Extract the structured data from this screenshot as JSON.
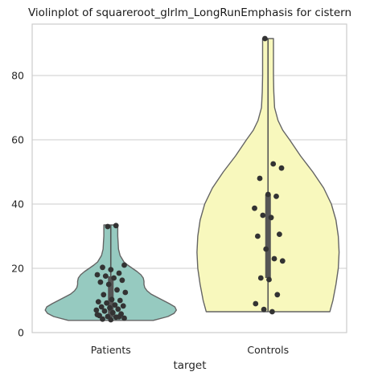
{
  "chart_data": {
    "type": "violin",
    "title": "Violinplot of squareroot_glrlm_LongRunEmphasis for cistern",
    "xlabel": "target",
    "ylabel": "",
    "ylim": [
      0,
      96
    ],
    "yticks": [
      0,
      20,
      40,
      60,
      80
    ],
    "grid": true,
    "categories": [
      "Patients",
      "Controls"
    ],
    "colors": {
      "Patients": "#96cac0",
      "Controls": "#f8f8bd",
      "outline": "#646464",
      "points": "#333333",
      "box": "#555555"
    },
    "violins": [
      {
        "category": "Patients",
        "min": 3.8,
        "max": 33.5,
        "q1": 4.8,
        "median": 10.0,
        "q3": 17.5,
        "profile": [
          [
            3.8,
            0.55
          ],
          [
            5,
            0.74
          ],
          [
            6,
            0.82
          ],
          [
            7,
            0.85
          ],
          [
            8,
            0.83
          ],
          [
            9,
            0.76
          ],
          [
            10,
            0.68
          ],
          [
            11,
            0.6
          ],
          [
            12,
            0.52
          ],
          [
            13,
            0.47
          ],
          [
            14,
            0.44
          ],
          [
            15,
            0.43
          ],
          [
            16,
            0.43
          ],
          [
            17,
            0.42
          ],
          [
            18,
            0.39
          ],
          [
            19,
            0.34
          ],
          [
            20,
            0.28
          ],
          [
            21,
            0.22
          ],
          [
            22,
            0.17
          ],
          [
            24,
            0.12
          ],
          [
            26,
            0.1
          ],
          [
            28,
            0.095
          ],
          [
            30,
            0.09
          ],
          [
            32,
            0.09
          ],
          [
            33.5,
            0.09
          ]
        ],
        "points": [
          33.0,
          33.3,
          21.0,
          20.3,
          19.6,
          18.5,
          18.0,
          17.6,
          17.0,
          16.3,
          15.7,
          15.0,
          13.3,
          12.5,
          11.8,
          10.3,
          10.0,
          9.6,
          9.2,
          8.6,
          8.3,
          8.0,
          7.7,
          7.3,
          7.0,
          6.7,
          6.2,
          5.8,
          5.3,
          5.0,
          4.8,
          4.5,
          4.2,
          4.0,
          4.9,
          5.6
        ]
      },
      {
        "category": "Controls",
        "min": 6.5,
        "max": 91.5,
        "q1": 17.0,
        "median": 30.0,
        "q3": 43.0,
        "profile": [
          [
            6.5,
            0.8
          ],
          [
            10,
            0.84
          ],
          [
            15,
            0.88
          ],
          [
            20,
            0.91
          ],
          [
            25,
            0.92
          ],
          [
            30,
            0.91
          ],
          [
            35,
            0.88
          ],
          [
            40,
            0.82
          ],
          [
            45,
            0.72
          ],
          [
            50,
            0.58
          ],
          [
            55,
            0.42
          ],
          [
            60,
            0.28
          ],
          [
            63,
            0.19
          ],
          [
            66,
            0.13
          ],
          [
            70,
            0.085
          ],
          [
            75,
            0.075
          ],
          [
            80,
            0.07
          ],
          [
            85,
            0.07
          ],
          [
            91.5,
            0.07
          ]
        ],
        "points": [
          91.5,
          52.5,
          51.2,
          48.0,
          43.0,
          42.4,
          38.7,
          36.5,
          35.8,
          30.6,
          30.0,
          26.0,
          23.0,
          22.3,
          17.0,
          16.5,
          11.8,
          9.0,
          7.2,
          6.5
        ]
      }
    ]
  }
}
